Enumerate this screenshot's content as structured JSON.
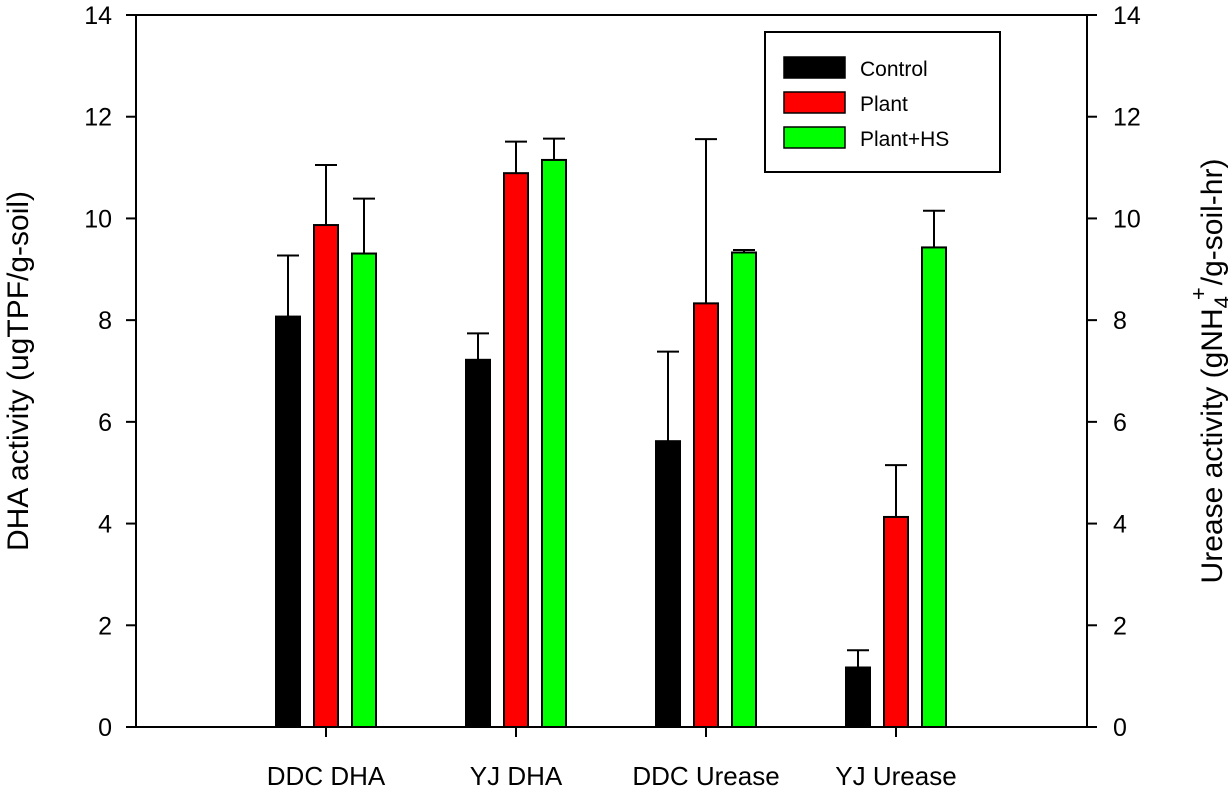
{
  "chart_data": {
    "type": "bar",
    "title": "",
    "categories": [
      "DDC DHA",
      "YJ DHA",
      "DDC Urease",
      "YJ Urease"
    ],
    "series": [
      {
        "name": "Control",
        "color": "#000000",
        "values": [
          8.07,
          7.22,
          5.62,
          1.17
        ],
        "error_upper": [
          9.27,
          7.74,
          7.38,
          1.51
        ]
      },
      {
        "name": "Plant",
        "color": "#ff0000",
        "values": [
          9.87,
          10.89,
          8.33,
          4.13
        ],
        "error_upper": [
          11.05,
          11.51,
          11.56,
          5.15
        ]
      },
      {
        "name": "Plant+HS",
        "color": "#00ff00",
        "values": [
          9.31,
          11.15,
          9.33,
          9.43
        ],
        "error_upper": [
          10.39,
          11.57,
          9.38,
          10.15
        ]
      }
    ],
    "xlabel": "",
    "ylabel": "DHA activity (ugTPF/g-soil)",
    "y2label": {
      "main": "Urease activity (gNH",
      "sub": "4",
      "sup": "+",
      "tail": "/g-soil-hr)"
    },
    "ylim": [
      0,
      14
    ],
    "y2lim": [
      0,
      14
    ],
    "yticks": [
      0,
      2,
      4,
      6,
      8,
      10,
      12,
      14
    ],
    "grid": false,
    "legend_position": "top-right"
  }
}
